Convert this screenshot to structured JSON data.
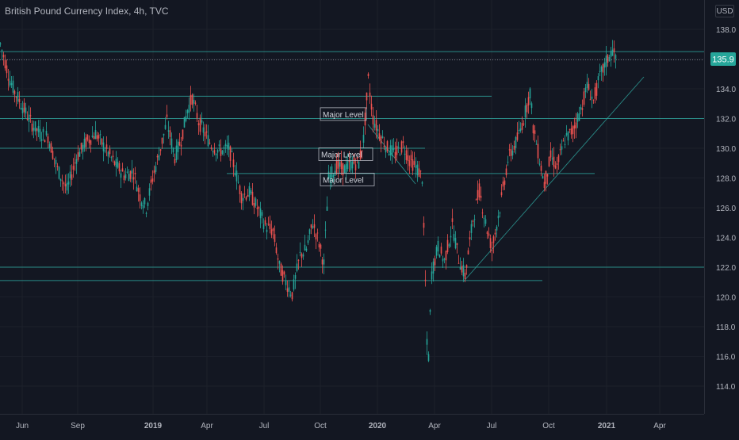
{
  "chart_data": {
    "type": "candlestick",
    "title": "British Pound Currency Index, 4h, TVC",
    "currency": "USD",
    "last_price": "135.9",
    "y_ticks": [
      114.0,
      116.0,
      118.0,
      120.0,
      122.0,
      124.0,
      126.0,
      128.0,
      130.0,
      132.0,
      134.0,
      136.0,
      138.0
    ],
    "x_ticks": [
      "Jun",
      "Sep",
      "2019",
      "Apr",
      "Jul",
      "Oct",
      "2020",
      "Apr",
      "Jul",
      "Oct",
      "2021",
      "Apr"
    ],
    "ylim": [
      113.0,
      139.2
    ],
    "grid": true,
    "price_path": [
      [
        0,
        137.0
      ],
      [
        6,
        135.8
      ],
      [
        12,
        134.6
      ],
      [
        18,
        133.8
      ],
      [
        24,
        133.2
      ],
      [
        30,
        132.6
      ],
      [
        40,
        131.6
      ],
      [
        50,
        131.0
      ],
      [
        60,
        130.8
      ],
      [
        72,
        128.6
      ],
      [
        84,
        127.2
      ],
      [
        96,
        129.4
      ],
      [
        108,
        130.4
      ],
      [
        120,
        131.0
      ],
      [
        132,
        130.0
      ],
      [
        144,
        129.0
      ],
      [
        156,
        128.2
      ],
      [
        168,
        128.4
      ],
      [
        176,
        126.8
      ],
      [
        184,
        126.0
      ],
      [
        192,
        128.0
      ],
      [
        200,
        129.6
      ],
      [
        210,
        131.8
      ],
      [
        220,
        129.4
      ],
      [
        228,
        130.6
      ],
      [
        236,
        132.6
      ],
      [
        242,
        133.4
      ],
      [
        250,
        131.8
      ],
      [
        258,
        131.0
      ],
      [
        266,
        130.2
      ],
      [
        276,
        129.8
      ],
      [
        288,
        130.0
      ],
      [
        296,
        128.6
      ],
      [
        304,
        126.8
      ],
      [
        314,
        127.0
      ],
      [
        324,
        126.0
      ],
      [
        334,
        124.8
      ],
      [
        344,
        124.4
      ],
      [
        352,
        122.0
      ],
      [
        360,
        121.0
      ],
      [
        368,
        120.2
      ],
      [
        378,
        122.8
      ],
      [
        386,
        123.2
      ],
      [
        394,
        125.0
      ],
      [
        402,
        123.6
      ],
      [
        408,
        122.2
      ],
      [
        414,
        128.0
      ],
      [
        424,
        128.8
      ],
      [
        434,
        128.6
      ],
      [
        444,
        129.0
      ],
      [
        452,
        129.0
      ],
      [
        458,
        130.6
      ],
      [
        464,
        134.6
      ],
      [
        470,
        132.0
      ],
      [
        478,
        131.0
      ],
      [
        488,
        130.0
      ],
      [
        498,
        129.6
      ],
      [
        508,
        130.2
      ],
      [
        516,
        129.2
      ],
      [
        526,
        128.6
      ],
      [
        532,
        128.0
      ],
      [
        536,
        121.0
      ],
      [
        539,
        114.6
      ],
      [
        544,
        121.6
      ],
      [
        552,
        123.4
      ],
      [
        560,
        122.4
      ],
      [
        570,
        124.8
      ],
      [
        578,
        122.6
      ],
      [
        586,
        121.4
      ],
      [
        596,
        125.2
      ],
      [
        604,
        127.2
      ],
      [
        612,
        125.0
      ],
      [
        620,
        123.2
      ],
      [
        630,
        126.0
      ],
      [
        640,
        129.2
      ],
      [
        652,
        130.6
      ],
      [
        660,
        132.0
      ],
      [
        668,
        133.8
      ],
      [
        672,
        131.4
      ],
      [
        678,
        129.8
      ],
      [
        686,
        127.6
      ],
      [
        694,
        129.4
      ],
      [
        702,
        128.8
      ],
      [
        712,
        130.6
      ],
      [
        722,
        131.2
      ],
      [
        732,
        132.6
      ],
      [
        740,
        134.2
      ],
      [
        748,
        133.2
      ],
      [
        756,
        134.8
      ],
      [
        764,
        135.8
      ],
      [
        772,
        136.6
      ],
      [
        776,
        136.0
      ]
    ],
    "horizontal_lines": [
      {
        "price": 136.5,
        "x0": 0,
        "x1": 888
      },
      {
        "price": 133.5,
        "x0": 0,
        "x1": 620
      },
      {
        "price": 132.0,
        "x0": 0,
        "x1": 888
      },
      {
        "price": 130.0,
        "x0": 0,
        "x1": 536
      },
      {
        "price": 128.3,
        "x0": 286,
        "x1": 750
      },
      {
        "price": 122.0,
        "x0": 0,
        "x1": 888
      },
      {
        "price": 121.1,
        "x0": 0,
        "x1": 684
      }
    ],
    "trend_lines": [
      {
        "x0": 584,
        "p0": 121.0,
        "x1": 812,
        "p1": 134.8
      },
      {
        "x0": 464,
        "p0": 131.6,
        "x1": 524,
        "p1": 127.6
      }
    ],
    "boxes": [
      {
        "x": 404,
        "price": 132.3,
        "w": 58,
        "label": "Major Level"
      },
      {
        "x": 402,
        "price": 129.6,
        "w": 68,
        "label": "Major Level"
      },
      {
        "x": 404,
        "price": 127.9,
        "w": 68,
        "label": "Major Level"
      }
    ]
  }
}
